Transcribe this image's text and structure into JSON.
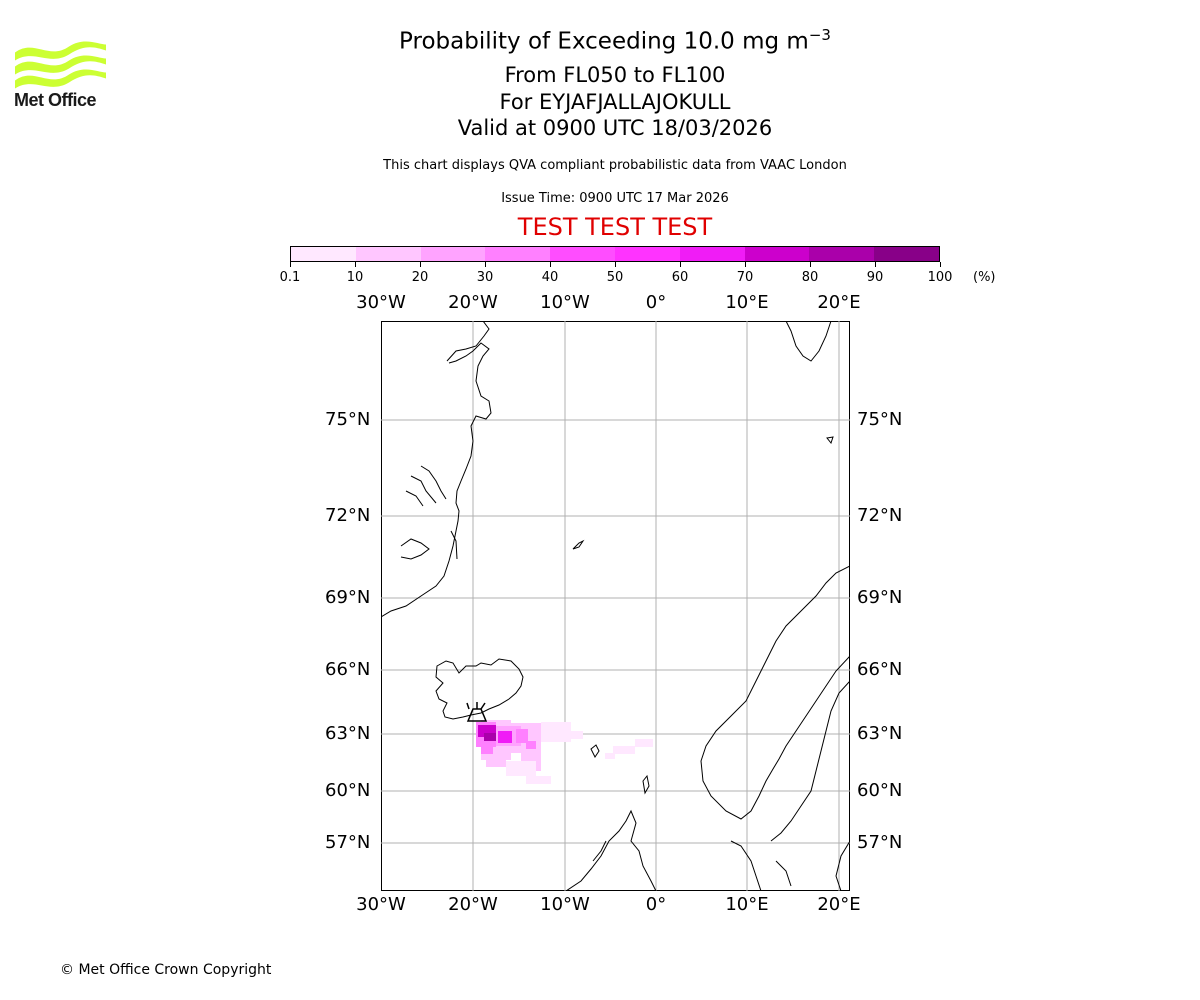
{
  "header": {
    "title_line1": "Probability of Exceeding 10.0 mg m",
    "title_sup": "−3",
    "title_line2": "From FL050 to FL100",
    "title_line3": "For EYJAFJALLAJOKULL",
    "title_line4": "Valid at 0900 UTC 18/03/2026",
    "description": "This chart displays QVA compliant probabilistic data from VAAC London",
    "issue_time": "Issue Time: 0900 UTC 17 Mar 2026",
    "test_banner": "TEST TEST TEST"
  },
  "logo": {
    "text": "Met Office",
    "icon": "met-office-wave-logo",
    "color": "#ccff33"
  },
  "colorbar": {
    "ticks": [
      "0.1",
      "10",
      "20",
      "30",
      "40",
      "50",
      "60",
      "70",
      "80",
      "90",
      "100"
    ],
    "unit": "(%)",
    "colors": [
      "#ffe8ff",
      "#ffc6ff",
      "#ffa3ff",
      "#ff80ff",
      "#ff4dff",
      "#ff33ff",
      "#f01cf6",
      "#cc00cc",
      "#aa00aa",
      "#880088",
      "#660066"
    ]
  },
  "map": {
    "lon_labels": [
      "30°W",
      "20°W",
      "10°W",
      "0°",
      "10°E",
      "20°E"
    ],
    "lat_labels": [
      "75°N",
      "72°N",
      "69°N",
      "66°N",
      "63°N",
      "60°N",
      "57°N"
    ],
    "volcano_icon": "volcano-icon"
  },
  "footer": {
    "copyright": "© Met Office Crown Copyright"
  }
}
